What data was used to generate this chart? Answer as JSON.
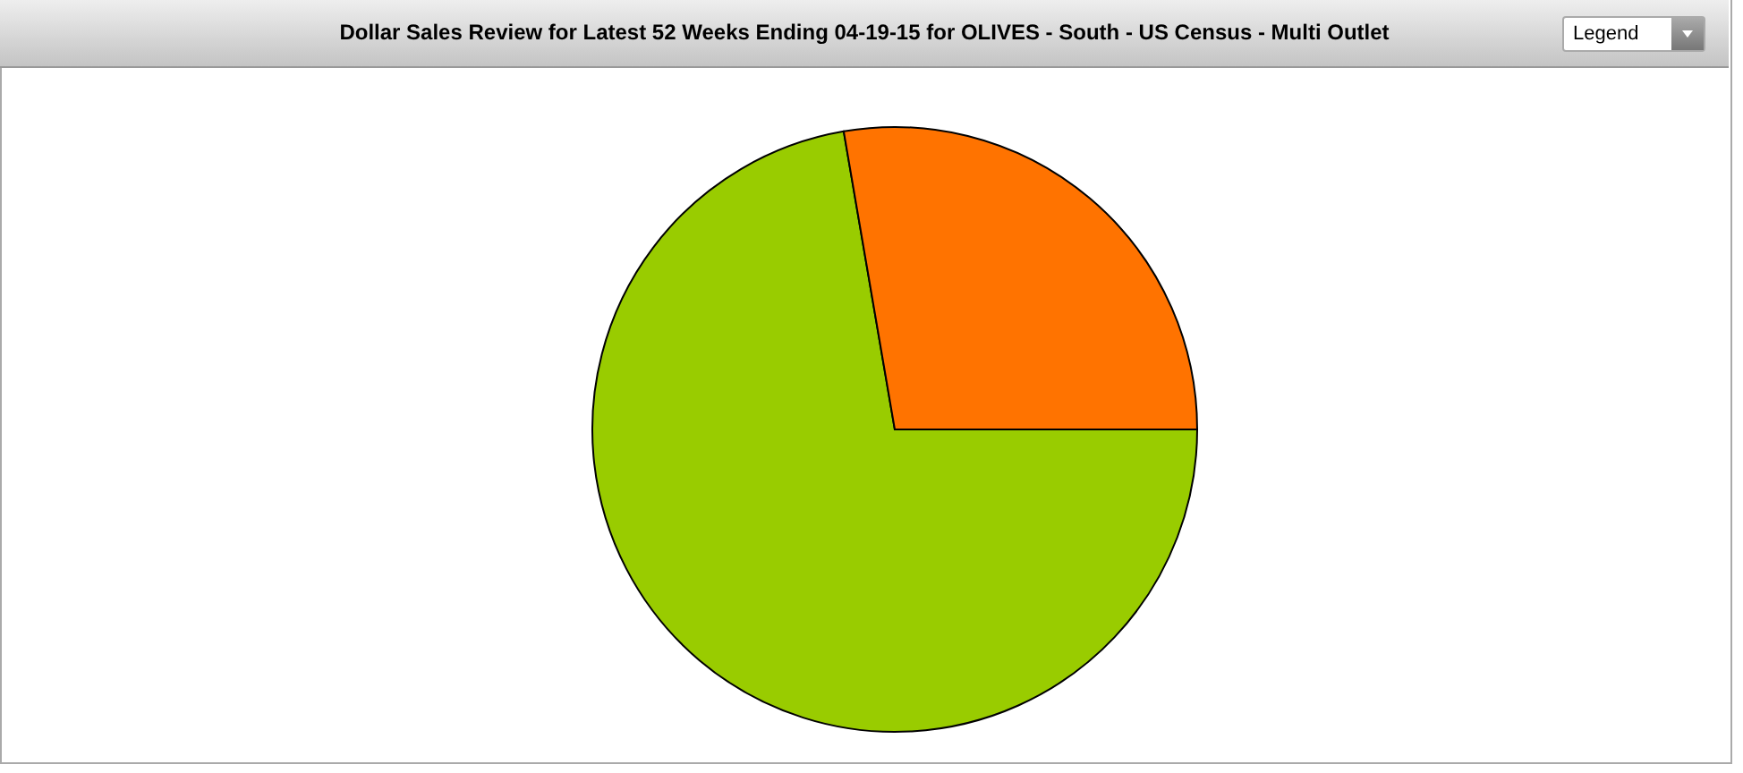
{
  "chart_data": {
    "type": "pie",
    "title": "Dollar Sales Review for Latest 52 Weeks Ending 04-19-15 for OLIVES - South - US Census - Multi Outlet",
    "categories": [
      null,
      null
    ],
    "values": [
      72.3,
      27.7
    ],
    "colors": [
      "#99cc00",
      "#ff7300"
    ],
    "annotations": [
      "Legend"
    ],
    "legend": false
  }
}
